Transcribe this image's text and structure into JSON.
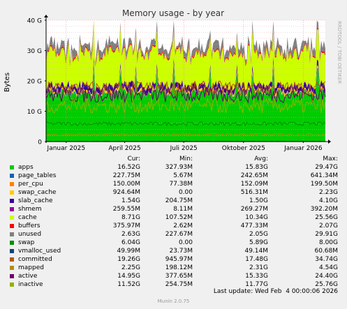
{
  "chart_data": {
    "type": "area",
    "title": "Memory usage - by year",
    "ylabel": "Bytes",
    "watermark": "RRDTOOL / TOBI OETIKER",
    "yticks": [
      "0",
      "10 G",
      "20 G",
      "30 G",
      "40 G"
    ],
    "ylim": [
      0,
      40
    ],
    "xticks": [
      {
        "label": "Januar 2025",
        "date": "2025-01-01"
      },
      {
        "label": "April 2025",
        "date": "2025-04-01"
      },
      {
        "label": "Juli 2025",
        "date": "2025-07-01"
      },
      {
        "label": "Oktober 2025",
        "date": "2025-10-01"
      },
      {
        "label": "Januar 2026",
        "date": "2026-01-01"
      }
    ],
    "xrange": [
      "2024-12-01",
      "2026-02-04"
    ],
    "grid": true,
    "legend_columns": [
      "Cur:",
      "Min:",
      "Avg:",
      "Max:"
    ],
    "series": [
      {
        "name": "apps",
        "color": "#00cc00",
        "cur": "16.52G",
        "min": "327.93M",
        "avg": "15.83G",
        "max": "29.47G"
      },
      {
        "name": "page_tables",
        "color": "#0066b3",
        "cur": "227.75M",
        "min": "5.67M",
        "avg": "242.65M",
        "max": "641.34M"
      },
      {
        "name": "per_cpu",
        "color": "#ff8000",
        "cur": "150.00M",
        "min": "77.38M",
        "avg": "152.09M",
        "max": "199.50M"
      },
      {
        "name": "swap_cache",
        "color": "#ffcc00",
        "cur": "924.64M",
        "min": "0.00",
        "avg": "516.31M",
        "max": "2.23G"
      },
      {
        "name": "slab_cache",
        "color": "#330099",
        "cur": "1.54G",
        "min": "204.75M",
        "avg": "1.50G",
        "max": "4.10G"
      },
      {
        "name": "shmem",
        "color": "#990099",
        "cur": "259.55M",
        "min": "8.11M",
        "avg": "269.27M",
        "max": "392.20M"
      },
      {
        "name": "cache",
        "color": "#ccff00",
        "cur": "8.71G",
        "min": "107.52M",
        "avg": "10.34G",
        "max": "25.56G"
      },
      {
        "name": "buffers",
        "color": "#ff0000",
        "cur": "375.97M",
        "min": "2.62M",
        "avg": "477.33M",
        "max": "2.07G"
      },
      {
        "name": "unused",
        "color": "#808080",
        "cur": "2.63G",
        "min": "227.67M",
        "avg": "2.05G",
        "max": "29.91G"
      },
      {
        "name": "swap",
        "color": "#008f00",
        "cur": "6.04G",
        "min": "0.00",
        "avg": "5.89G",
        "max": "8.00G"
      },
      {
        "name": "vmalloc_used",
        "color": "#00487d",
        "cur": "49.99M",
        "min": "23.73M",
        "avg": "49.14M",
        "max": "60.68M"
      },
      {
        "name": "committed",
        "color": "#b35a00",
        "cur": "19.26G",
        "min": "945.97M",
        "avg": "17.48G",
        "max": "34.74G"
      },
      {
        "name": "mapped",
        "color": "#b38f00",
        "cur": "2.25G",
        "min": "198.12M",
        "avg": "2.31G",
        "max": "4.54G"
      },
      {
        "name": "active",
        "color": "#6b006b",
        "cur": "14.95G",
        "min": "377.65M",
        "avg": "15.33G",
        "max": "24.40G"
      },
      {
        "name": "inactive",
        "color": "#8fb300",
        "cur": "11.52G",
        "min": "254.75M",
        "avg": "11.77G",
        "max": "25.76G"
      }
    ]
  },
  "footer": {
    "last_update": "Last update: Wed Feb  4 00:00:06 2026",
    "version": "Munin 2.0.75"
  }
}
